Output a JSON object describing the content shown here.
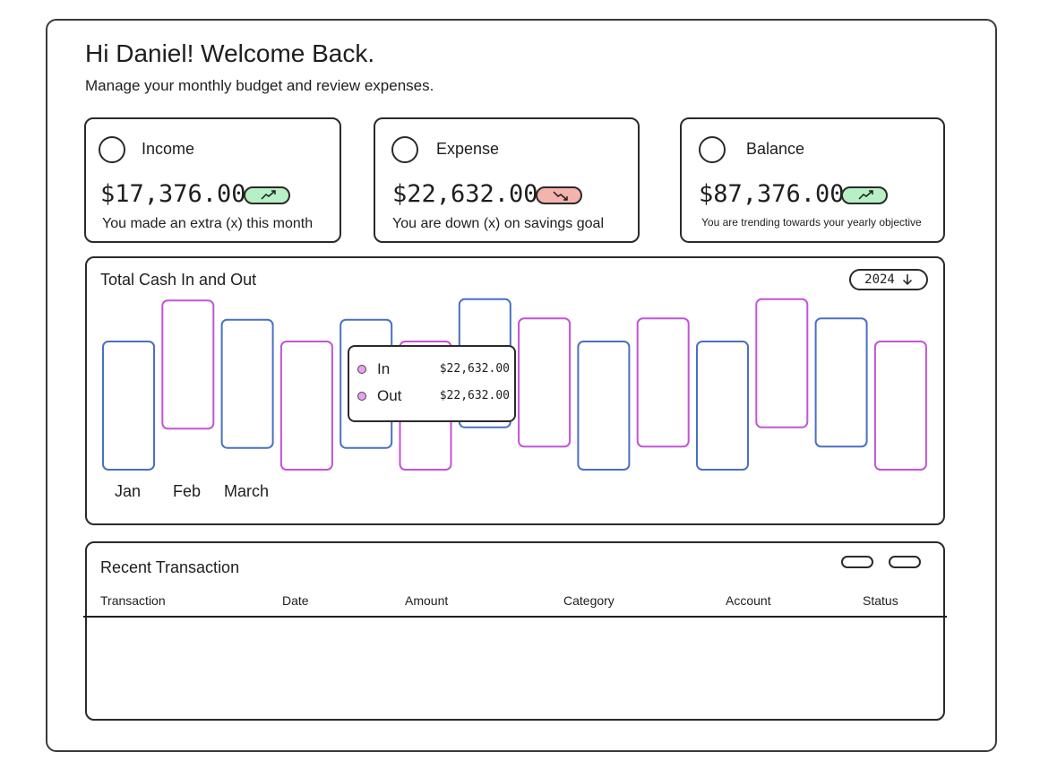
{
  "header": {
    "greeting": "Hi Daniel! Welcome Back.",
    "subtitle": "Manage your monthly budget and review expenses."
  },
  "cards": [
    {
      "title": "Income",
      "amount": "$17,376.00",
      "trend": "up",
      "trend_color": "#b7f0c4",
      "note": "You made an extra (x) this month"
    },
    {
      "title": "Expense",
      "amount": "$22,632.00",
      "trend": "down",
      "trend_color": "#f4b3ae",
      "note": "You are down (x) on savings goal"
    },
    {
      "title": "Balance",
      "amount": "$87,376.00",
      "trend": "up",
      "trend_color": "#b7f0c4",
      "note": "You are trending towards your yearly objective"
    }
  ],
  "cash_chart": {
    "title": "Total Cash In and Out",
    "year": "2024",
    "month_labels": [
      "Jan",
      "Feb",
      "March"
    ],
    "colors": {
      "in": "#4a6fc4",
      "out": "#c552d8"
    },
    "tooltip": {
      "rows": [
        {
          "label": "In",
          "value": "$22,632.00"
        },
        {
          "label": "Out",
          "value": "$22,632.00"
        }
      ]
    }
  },
  "chart_data": {
    "type": "bar",
    "title": "Total Cash In and Out",
    "categories": [
      "Jan",
      "Feb",
      "March"
    ],
    "bars": [
      {
        "series": "in",
        "low": 0.0,
        "high": 1.0
      },
      {
        "series": "out",
        "low": 0.32,
        "high": 1.32
      },
      {
        "series": "in",
        "low": 0.17,
        "high": 1.17
      },
      {
        "series": "out",
        "low": 0.0,
        "high": 1.0
      },
      {
        "series": "in",
        "low": 0.17,
        "high": 1.17
      },
      {
        "series": "out",
        "low": 0.0,
        "high": 1.0
      },
      {
        "series": "in",
        "low": 0.33,
        "high": 1.33
      },
      {
        "series": "out",
        "low": 0.18,
        "high": 1.18
      },
      {
        "series": "in",
        "low": 0.0,
        "high": 1.0
      },
      {
        "series": "out",
        "low": 0.18,
        "high": 1.18
      },
      {
        "series": "in",
        "low": 0.0,
        "high": 1.0
      },
      {
        "series": "out",
        "low": 0.33,
        "high": 1.33
      },
      {
        "series": "in",
        "low": 0.18,
        "high": 1.18
      },
      {
        "series": "out",
        "low": 0.0,
        "high": 1.0
      }
    ]
  },
  "transactions": {
    "title": "Recent Transaction",
    "columns": [
      "Transaction",
      "Date",
      "Amount",
      "Category",
      "Account",
      "Status"
    ],
    "rows": []
  }
}
